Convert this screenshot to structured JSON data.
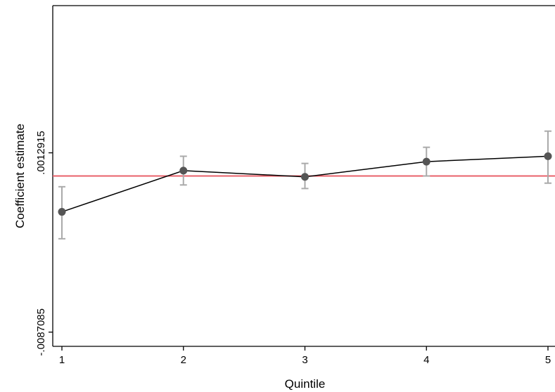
{
  "chart_data": {
    "type": "line",
    "title": "",
    "xlabel": "Quintile",
    "ylabel": "Coefficient estimate",
    "x": [
      1,
      2,
      3,
      4,
      5
    ],
    "x_ticks": [
      "1",
      "2",
      "3",
      "4",
      "5"
    ],
    "xlim": [
      1,
      5
    ],
    "y_ticks": [
      {
        "value": -0.0087085,
        "label": "-.0087085"
      },
      {
        "value": 0.0012915,
        "label": ".0012915"
      }
    ],
    "ylim": [
      -0.0095,
      0.0095
    ],
    "series": [
      {
        "values": [
          -0.002,
          0.0003,
          -5e-05,
          0.0008,
          0.0011
        ],
        "ci_low": [
          -0.0035,
          -0.0005,
          -0.0007,
          0.0,
          -0.0004
        ],
        "ci_high": [
          -0.0006,
          0.0011,
          0.0007,
          0.0016,
          0.0025
        ],
        "color": "#000000",
        "marker_color": "#555555",
        "errorbar_color": "#aaaaaa"
      }
    ],
    "reference_line": {
      "value": 0.0,
      "color": "#e8606a"
    },
    "grid": false,
    "legend": "none"
  }
}
